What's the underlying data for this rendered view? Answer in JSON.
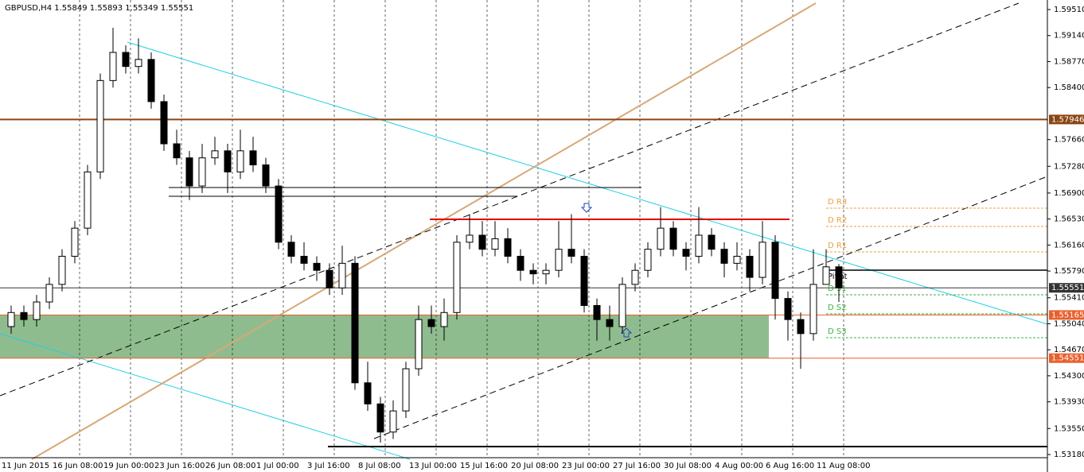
{
  "chart_data": {
    "type": "candlestick",
    "title": "GBPUSD,H4  1.55849 1.55893 1.55349 1.55551",
    "categories": [
      "11 Jun 2015",
      null,
      null,
      null,
      "16 Jun 08:00",
      null,
      null,
      null,
      "19 Jun 00:00",
      null,
      null,
      null,
      "23 Jun 16:00",
      null,
      null,
      null,
      "26 Jun 08:00",
      null,
      null,
      null,
      "1 Jul 00:00",
      null,
      null,
      null,
      "3 Jul 16:00",
      null,
      null,
      null,
      "8 Jul 08:00",
      null,
      null,
      null,
      "13 Jul 00:00",
      null,
      null,
      null,
      "15 Jul 16:00",
      null,
      null,
      null,
      "20 Jul 08:00",
      null,
      null,
      null,
      "23 Jul 00:00",
      null,
      null,
      null,
      "27 Jul 16:00",
      null,
      null,
      null,
      "30 Jul 08:00",
      null,
      null,
      null,
      "4 Aug 00:00",
      null,
      null,
      null,
      "6 Aug 16:00",
      null,
      null,
      null,
      "11 Aug 08:00",
      null
    ],
    "open": [
      1.55,
      1.552,
      1.551,
      1.5535,
      1.556,
      1.56,
      1.564,
      1.572,
      1.585,
      1.589,
      1.587,
      1.588,
      1.582,
      1.576,
      1.574,
      1.57,
      1.574,
      1.575,
      1.572,
      1.575,
      1.573,
      1.57,
      1.562,
      1.56,
      1.559,
      1.558,
      1.5555,
      1.559,
      1.542,
      1.539,
      1.535,
      1.538,
      1.544,
      1.551,
      1.55,
      1.552,
      1.562,
      1.563,
      1.561,
      1.5625,
      1.56,
      1.558,
      1.5575,
      1.558,
      1.561,
      1.56,
      1.553,
      1.551,
      1.55,
      1.556,
      1.558,
      1.561,
      1.564,
      1.561,
      1.56,
      1.563,
      1.561,
      1.559,
      1.56,
      1.557,
      1.562,
      1.554,
      1.551,
      1.549,
      1.556,
      1.5585
    ],
    "high": [
      1.553,
      1.553,
      1.5545,
      1.557,
      1.561,
      1.565,
      1.573,
      1.586,
      1.5925,
      1.59,
      1.591,
      1.589,
      1.583,
      1.578,
      1.575,
      1.576,
      1.577,
      1.576,
      1.578,
      1.577,
      1.574,
      1.571,
      1.563,
      1.562,
      1.56,
      1.559,
      1.5615,
      1.56,
      1.545,
      1.54,
      1.5395,
      1.545,
      1.553,
      1.553,
      1.554,
      1.563,
      1.566,
      1.565,
      1.565,
      1.564,
      1.561,
      1.559,
      1.559,
      1.565,
      1.566,
      1.561,
      1.554,
      1.553,
      1.557,
      1.559,
      1.562,
      1.567,
      1.565,
      1.562,
      1.567,
      1.564,
      1.562,
      1.562,
      1.561,
      1.565,
      1.563,
      1.555,
      1.552,
      1.561,
      1.561,
      1.5589
    ],
    "low": [
      1.549,
      1.55,
      1.55,
      1.5525,
      1.555,
      1.559,
      1.563,
      1.571,
      1.584,
      1.586,
      1.586,
      1.581,
      1.575,
      1.573,
      1.568,
      1.569,
      1.573,
      1.569,
      1.571,
      1.572,
      1.569,
      1.561,
      1.559,
      1.558,
      1.5565,
      1.5545,
      1.5545,
      1.541,
      1.538,
      1.5335,
      1.534,
      1.537,
      1.543,
      1.549,
      1.548,
      1.551,
      1.561,
      1.56,
      1.56,
      1.559,
      1.5565,
      1.556,
      1.556,
      1.557,
      1.559,
      1.552,
      1.548,
      1.548,
      1.549,
      1.555,
      1.557,
      1.56,
      1.56,
      1.558,
      1.559,
      1.56,
      1.557,
      1.558,
      1.555,
      1.556,
      1.551,
      1.548,
      1.544,
      1.548,
      1.556,
      1.5535
    ],
    "close": [
      1.552,
      1.551,
      1.5535,
      1.556,
      1.56,
      1.564,
      1.572,
      1.585,
      1.589,
      1.587,
      1.588,
      1.582,
      1.576,
      1.574,
      1.57,
      1.574,
      1.575,
      1.572,
      1.575,
      1.573,
      1.57,
      1.562,
      1.56,
      1.559,
      1.558,
      1.5555,
      1.559,
      1.542,
      1.539,
      1.535,
      1.538,
      1.544,
      1.551,
      1.55,
      1.552,
      1.562,
      1.563,
      1.561,
      1.5625,
      1.56,
      1.558,
      1.5575,
      1.558,
      1.561,
      1.56,
      1.553,
      1.551,
      1.55,
      1.556,
      1.558,
      1.561,
      1.564,
      1.561,
      1.56,
      1.563,
      1.561,
      1.559,
      1.56,
      1.557,
      1.562,
      1.554,
      1.551,
      1.549,
      1.556,
      1.5585,
      1.5555
    ],
    "ylim": [
      1.5318,
      1.5951
    ],
    "yticks": [
      {
        "value": 1.5951,
        "label": "1.59510"
      },
      {
        "value": 1.5914,
        "label": "1.59140"
      },
      {
        "value": 1.5877,
        "label": "1.58770"
      },
      {
        "value": 1.584,
        "label": "1.58400"
      },
      {
        "value": 1.5766,
        "label": "1.57660"
      },
      {
        "value": 1.5728,
        "label": "1.57280"
      },
      {
        "value": 1.569,
        "label": "1.56900"
      },
      {
        "value": 1.5653,
        "label": "1.56530"
      },
      {
        "value": 1.5616,
        "label": "1.56160"
      },
      {
        "value": 1.5579,
        "label": "1.55790"
      },
      {
        "value": 1.5541,
        "label": "1.55410"
      },
      {
        "value": 1.5504,
        "label": "1.55040"
      },
      {
        "value": 1.5467,
        "label": "1.54670"
      },
      {
        "value": 1.543,
        "label": "1.54300"
      },
      {
        "value": 1.5393,
        "label": "1.53930"
      },
      {
        "value": 1.5355,
        "label": "1.53550"
      },
      {
        "value": 1.5318,
        "label": "1.53180"
      }
    ],
    "levels": [
      {
        "value": 1.57946,
        "color": "#8b4513"
      },
      {
        "value": 1.55551,
        "color": "#333333"
      },
      {
        "value": 1.55165,
        "color": "#e8602c"
      },
      {
        "value": 1.54551,
        "color": "#e8602c"
      }
    ],
    "pivots": [
      {
        "label": "D R3",
        "value": 1.56684,
        "color": "#e8a040"
      },
      {
        "label": "D R2",
        "value": 1.56424,
        "color": "#e8a040"
      },
      {
        "label": "D R1",
        "value": 1.56062,
        "color": "#e8a040"
      },
      {
        "label": "Pivot",
        "value": 1.55803,
        "color": "#000000"
      },
      {
        "label": "D S1",
        "value": 1.55452,
        "color": "#3cb043"
      },
      {
        "label": "D S2",
        "value": 1.55181,
        "color": "#3cb043"
      },
      {
        "label": "D S3",
        "value": 1.54842,
        "color": "#3cb043"
      }
    ]
  }
}
